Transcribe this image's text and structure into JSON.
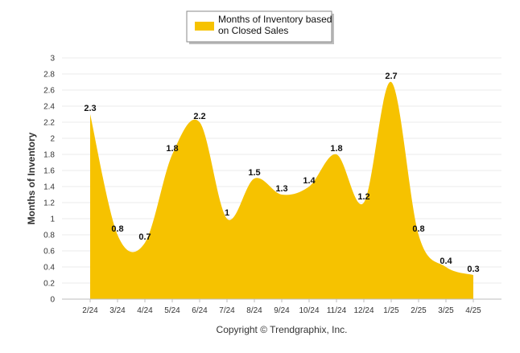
{
  "chart_data": {
    "type": "area",
    "categories": [
      "2/24",
      "3/24",
      "4/24",
      "5/24",
      "6/24",
      "7/24",
      "8/24",
      "9/24",
      "10/24",
      "11/24",
      "12/24",
      "1/25",
      "2/25",
      "3/25",
      "4/25"
    ],
    "series": [
      {
        "name": "Months of Inventory based on Closed Sales",
        "values": [
          2.3,
          0.8,
          0.7,
          1.8,
          2.2,
          1.0,
          1.5,
          1.3,
          1.4,
          1.8,
          1.2,
          2.7,
          0.8,
          0.4,
          0.3
        ],
        "labels": [
          "2.3",
          "0.8",
          "0.7",
          "1.8",
          "2.2",
          "1",
          "1.5",
          "1.3",
          "1.4",
          "1.8",
          "1.2",
          "2.7",
          "0.8",
          "0.4",
          "0.3"
        ],
        "color": "#F6C200"
      }
    ],
    "legend_lines": [
      "Months of Inventory based",
      "on Closed Sales"
    ],
    "ylabel": "Months of Inventory",
    "xlabel": "",
    "ylim": [
      0,
      3
    ],
    "yticks": [
      "0",
      "0.2",
      "0.4",
      "0.6",
      "0.8",
      "1",
      "1.2",
      "1.4",
      "1.6",
      "1.8",
      "2",
      "2.2",
      "2.4",
      "2.6",
      "2.8",
      "3"
    ],
    "grid": true,
    "legend_position": "top-center",
    "footer": "Copyright © Trendgraphix, Inc."
  }
}
